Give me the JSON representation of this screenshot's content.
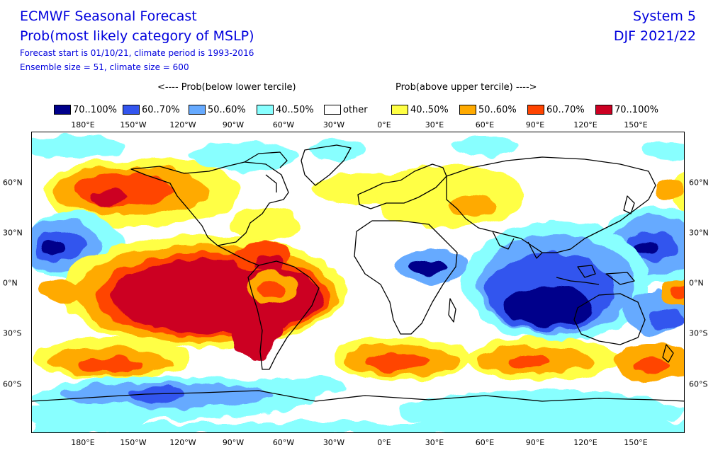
{
  "header": {
    "title": "ECMWF Seasonal Forecast",
    "subtitle": "Prob(most likely category of MSLP)",
    "info_line1": "Forecast start is 01/10/21, climate period is 1993-2016",
    "info_line2": "Ensemble size = 51, climate size = 600",
    "system": "System 5",
    "season": "DJF 2021/22"
  },
  "legend": {
    "below_heading": "<---- Prob(below lower tercile)",
    "above_heading": "Prob(above upper tercile) ---->",
    "items": [
      {
        "label": "70..100%",
        "color": "#00008b"
      },
      {
        "label": "60..70%",
        "color": "#3355ee"
      },
      {
        "label": "50..60%",
        "color": "#66aaff"
      },
      {
        "label": "40..50%",
        "color": "#88ffff"
      },
      {
        "label": "other",
        "color": "#ffffff"
      },
      {
        "label": "40..50%",
        "color": "#ffff44"
      },
      {
        "label": "50..60%",
        "color": "#ffaa00"
      },
      {
        "label": "60..70%",
        "color": "#ff4400"
      },
      {
        "label": "70..100%",
        "color": "#cc0022"
      }
    ]
  },
  "map": {
    "x_ticks": [
      "180°E",
      "150°W",
      "120°W",
      "90°W",
      "60°W",
      "30°W",
      "0°E",
      "30°E",
      "60°E",
      "90°E",
      "120°E",
      "150°E"
    ],
    "y_ticks": [
      "60°N",
      "30°N",
      "0°N",
      "30°S",
      "60°S"
    ]
  }
}
